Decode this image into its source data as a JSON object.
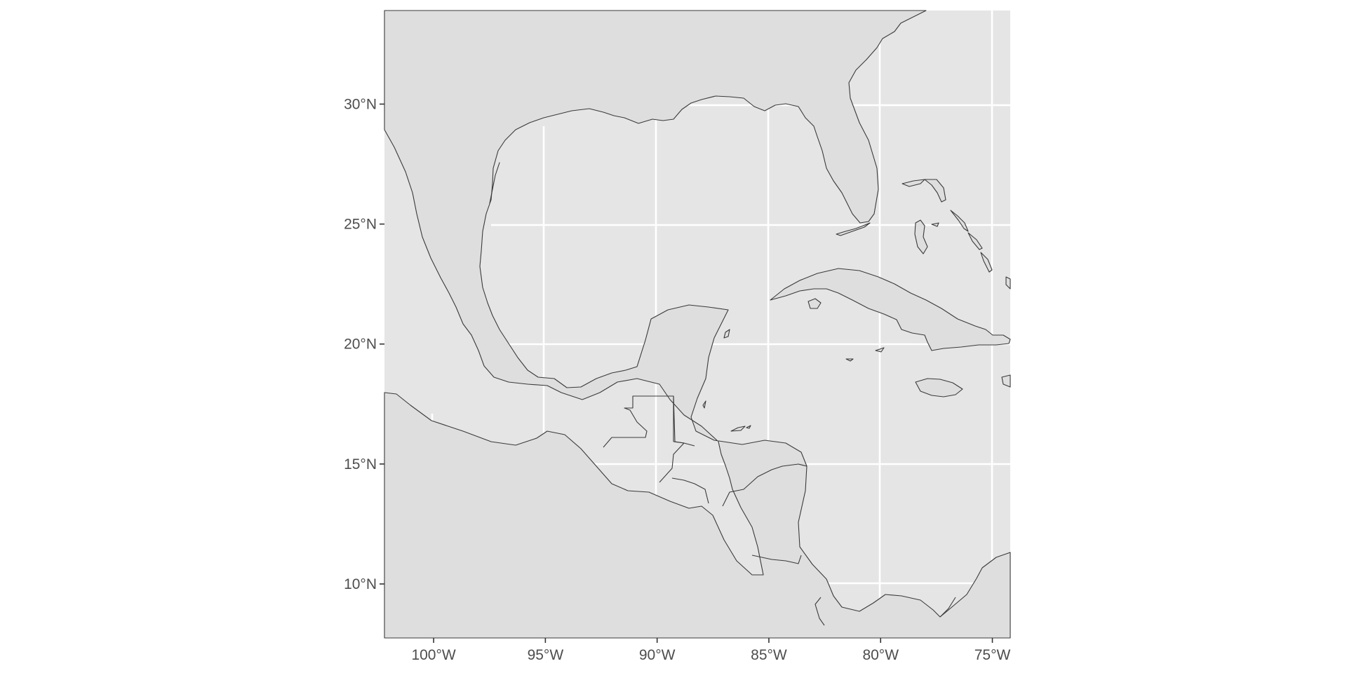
{
  "map": {
    "panel_background": "#e5e5e5",
    "land_fill": "#dedede",
    "coastline_color": "#3a3a3a",
    "grid_color": "#ffffff",
    "grid": true,
    "projection": "longitude-latitude",
    "lon_range": [
      -102.2,
      -74.2
    ],
    "lat_range": [
      7.75,
      33.9
    ],
    "x_ticks": [
      {
        "value": -100,
        "label": "100°W"
      },
      {
        "value": -95,
        "label": "95°W"
      },
      {
        "value": -90,
        "label": "90°W"
      },
      {
        "value": -85,
        "label": "85°W"
      },
      {
        "value": -80,
        "label": "80°W"
      },
      {
        "value": -75,
        "label": "75°W"
      }
    ],
    "y_ticks": [
      {
        "value": 30,
        "label": "30°N"
      },
      {
        "value": 25,
        "label": "25°N"
      },
      {
        "value": 20,
        "label": "20°N"
      },
      {
        "value": 15,
        "label": "15°N"
      },
      {
        "value": 10,
        "label": "10°N"
      }
    ]
  }
}
